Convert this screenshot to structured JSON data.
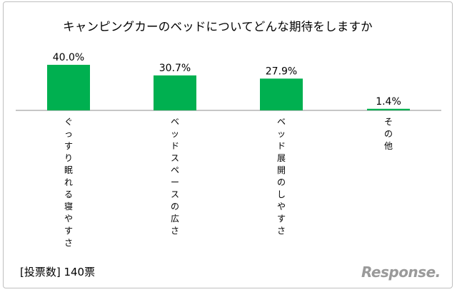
{
  "title": "キャンピングカーのベッドについてどんな期待をしますか",
  "footnote": "[投票数] 140票",
  "watermark": "Response.",
  "colors": {
    "bar": "#00b050",
    "axis": "#8c8c8c"
  },
  "chart_data": {
    "type": "bar",
    "title": "キャンピングカーのベッドについてどんな期待をしますか",
    "categories": [
      "ぐっすり眠れる寝やすさ",
      "ベッドスペースの広さ",
      "ベッド展開のしやすさ",
      "その他"
    ],
    "values": [
      40.0,
      30.7,
      27.9,
      1.4
    ],
    "value_labels": [
      "40.0%",
      "30.7%",
      "27.9%",
      "1.4%"
    ],
    "unit": "%",
    "ylim": [
      0,
      40.0
    ],
    "grid": false,
    "legend": "none"
  }
}
